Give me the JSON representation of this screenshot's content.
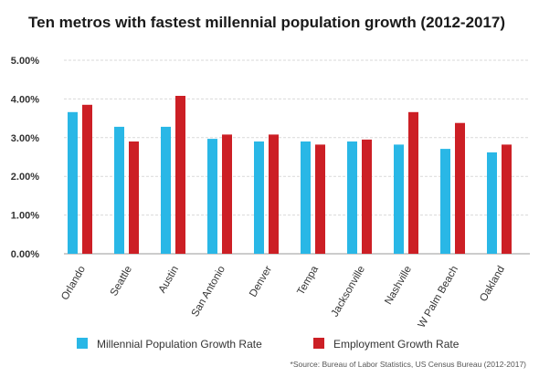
{
  "colors": {
    "millennial": "#29b7e6",
    "employment": "#cc1f25",
    "grid": "#d9d9d9",
    "axis": "#bbbbbb"
  },
  "chart_data": {
    "type": "bar",
    "title": "Ten metros with fastest millennial population growth (2012-2017)",
    "categories": [
      "Orlando",
      "Seattle",
      "Austin",
      "San Antonio",
      "Denver",
      "Tempa",
      "Jacksonville",
      "Nashville",
      "W Palm Beach",
      "Oakland"
    ],
    "series": [
      {
        "name": "Millennial Population Growth Rate",
        "values": [
          3.66,
          3.28,
          3.28,
          2.97,
          2.9,
          2.9,
          2.9,
          2.82,
          2.71,
          2.62
        ]
      },
      {
        "name": "Employment Growth Rate",
        "values": [
          3.85,
          2.9,
          4.08,
          3.08,
          3.08,
          2.82,
          2.95,
          3.66,
          3.38,
          2.82
        ]
      }
    ],
    "yticks": [
      "0.00%",
      "1.00%",
      "2.00%",
      "3.00%",
      "4.00%",
      "5.00%"
    ],
    "ylim": [
      0,
      5
    ],
    "grid": true,
    "legend_position": "bottom",
    "source": "*Source: Bureau of Labor Statistics, US Census Bureau (2012-2017)"
  }
}
